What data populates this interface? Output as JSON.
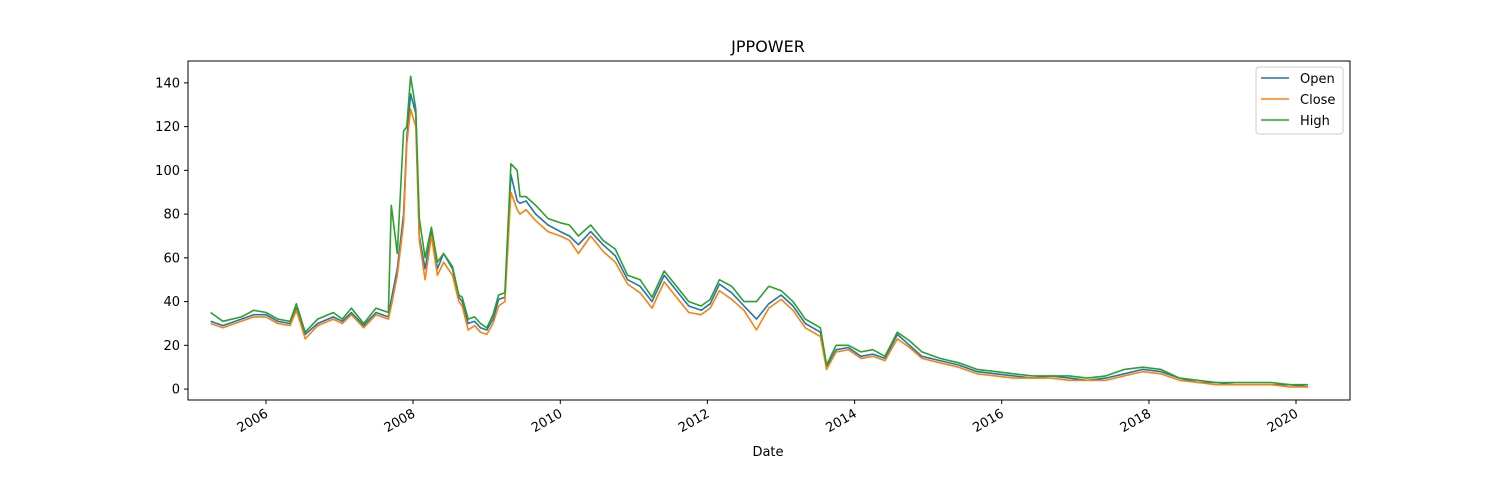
{
  "chart_data": {
    "type": "line",
    "title": "JPPOWER",
    "xlabel": "Date",
    "ylabel": "",
    "xlim": [
      "2004-12-10",
      "2020-09-25"
    ],
    "ylim": [
      -5,
      150
    ],
    "grid": false,
    "legend_position": "top-right",
    "x_ticks": [
      "2006",
      "2008",
      "2010",
      "2012",
      "2014",
      "2016",
      "2018",
      "2020"
    ],
    "y_ticks": [
      0,
      20,
      40,
      60,
      80,
      100,
      120,
      140
    ],
    "series": [
      {
        "name": "Open",
        "color": "#1f77b4",
        "x": [
          "2005-04-01",
          "2005-06-01",
          "2005-09-01",
          "2005-11-01",
          "2006-01-01",
          "2006-03-01",
          "2006-05-01",
          "2006-06-01",
          "2006-07-15",
          "2006-09-15",
          "2006-12-01",
          "2007-01-15",
          "2007-03-01",
          "2007-05-01",
          "2007-07-01",
          "2007-09-01",
          "2007-09-15",
          "2007-10-15",
          "2007-11-15",
          "2007-12-01",
          "2007-12-20",
          "2008-01-15",
          "2008-02-01",
          "2008-03-01",
          "2008-04-01",
          "2008-05-01",
          "2008-06-01",
          "2008-07-15",
          "2008-08-15",
          "2008-09-01",
          "2008-10-01",
          "2008-11-01",
          "2008-12-01",
          "2009-01-01",
          "2009-02-01",
          "2009-03-01",
          "2009-04-01",
          "2009-05-01",
          "2009-06-01",
          "2009-06-15",
          "2009-07-15",
          "2009-09-01",
          "2009-11-01",
          "2010-01-01",
          "2010-02-15",
          "2010-04-01",
          "2010-06-01",
          "2010-08-01",
          "2010-10-01",
          "2010-12-01",
          "2011-02-01",
          "2011-04-01",
          "2011-06-01",
          "2011-08-01",
          "2011-10-01",
          "2011-12-01",
          "2012-01-15",
          "2012-03-01",
          "2012-05-01",
          "2012-07-01",
          "2012-09-01",
          "2012-11-01",
          "2013-01-01",
          "2013-03-01",
          "2013-05-01",
          "2013-07-15",
          "2013-08-15",
          "2013-10-01",
          "2013-12-01",
          "2014-02-01",
          "2014-04-01",
          "2014-06-01",
          "2014-08-01",
          "2014-10-01",
          "2014-12-01",
          "2015-03-01",
          "2015-06-01",
          "2015-09-01",
          "2015-12-01",
          "2016-03-01",
          "2016-06-01",
          "2016-09-01",
          "2016-12-01",
          "2017-03-01",
          "2017-06-01",
          "2017-09-01",
          "2017-12-01",
          "2018-03-01",
          "2018-06-01",
          "2018-09-01",
          "2018-12-01",
          "2019-03-01",
          "2019-06-01",
          "2019-09-01",
          "2019-12-01",
          "2020-03-01"
        ],
        "y": [
          31,
          29,
          32,
          34,
          34,
          31,
          30,
          37,
          25,
          30,
          33,
          31,
          35,
          29,
          35,
          33,
          41,
          55,
          80,
          115,
          135,
          126,
          70,
          55,
          72,
          55,
          62,
          55,
          42,
          40,
          30,
          31,
          28,
          27,
          32,
          41,
          42,
          98,
          86,
          85,
          86,
          80,
          75,
          72,
          70,
          66,
          72,
          66,
          61,
          50,
          47,
          40,
          52,
          45,
          38,
          36,
          39,
          48,
          44,
          38,
          32,
          39,
          43,
          38,
          30,
          26,
          10,
          18,
          19,
          15,
          16,
          14,
          25,
          20,
          15,
          13,
          11,
          8,
          7,
          6,
          5,
          6,
          5,
          4,
          5,
          7,
          9,
          8,
          5,
          3,
          3,
          2,
          2,
          2,
          2,
          1
        ]
      },
      {
        "name": "Close",
        "color": "#ff7f0e",
        "x": [
          "2005-04-01",
          "2005-06-01",
          "2005-09-01",
          "2005-11-01",
          "2006-01-01",
          "2006-03-01",
          "2006-05-01",
          "2006-06-01",
          "2006-07-15",
          "2006-09-15",
          "2006-12-01",
          "2007-01-15",
          "2007-03-01",
          "2007-05-01",
          "2007-07-01",
          "2007-09-01",
          "2007-09-15",
          "2007-10-15",
          "2007-11-15",
          "2007-12-01",
          "2007-12-20",
          "2008-01-15",
          "2008-02-01",
          "2008-03-01",
          "2008-04-01",
          "2008-05-01",
          "2008-06-01",
          "2008-07-15",
          "2008-08-15",
          "2008-09-01",
          "2008-10-01",
          "2008-11-01",
          "2008-12-01",
          "2009-01-01",
          "2009-02-01",
          "2009-03-01",
          "2009-04-01",
          "2009-05-01",
          "2009-06-01",
          "2009-06-15",
          "2009-07-15",
          "2009-09-01",
          "2009-11-01",
          "2010-01-01",
          "2010-02-15",
          "2010-04-01",
          "2010-06-01",
          "2010-08-01",
          "2010-10-01",
          "2010-12-01",
          "2011-02-01",
          "2011-04-01",
          "2011-06-01",
          "2011-08-01",
          "2011-10-01",
          "2011-12-01",
          "2012-01-15",
          "2012-03-01",
          "2012-05-01",
          "2012-07-01",
          "2012-09-01",
          "2012-11-01",
          "2013-01-01",
          "2013-03-01",
          "2013-05-01",
          "2013-07-15",
          "2013-08-15",
          "2013-10-01",
          "2013-12-01",
          "2014-02-01",
          "2014-04-01",
          "2014-06-01",
          "2014-08-01",
          "2014-10-01",
          "2014-12-01",
          "2015-03-01",
          "2015-06-01",
          "2015-09-01",
          "2015-12-01",
          "2016-03-01",
          "2016-06-01",
          "2016-09-01",
          "2016-12-01",
          "2017-03-01",
          "2017-06-01",
          "2017-09-01",
          "2017-12-01",
          "2018-03-01",
          "2018-06-01",
          "2018-09-01",
          "2018-12-01",
          "2019-03-01",
          "2019-06-01",
          "2019-09-01",
          "2019-12-01",
          "2020-03-01"
        ],
        "y": [
          30,
          28,
          31,
          33,
          33,
          30,
          29,
          36,
          23,
          29,
          32,
          30,
          34,
          28,
          34,
          32,
          38,
          52,
          76,
          112,
          128,
          120,
          68,
          50,
          70,
          52,
          58,
          52,
          40,
          38,
          27,
          29,
          26,
          25,
          30,
          38,
          40,
          90,
          82,
          80,
          82,
          77,
          72,
          70,
          68,
          62,
          70,
          63,
          58,
          48,
          44,
          37,
          49,
          42,
          35,
          34,
          37,
          45,
          41,
          36,
          27,
          37,
          41,
          36,
          28,
          24,
          9,
          17,
          18,
          14,
          15,
          13,
          23,
          19,
          14,
          12,
          10,
          7,
          6,
          5,
          5,
          5,
          4,
          4,
          4,
          6,
          8,
          7,
          4,
          3,
          2,
          2,
          2,
          2,
          1,
          1
        ]
      },
      {
        "name": "High",
        "color": "#2ca02c",
        "x": [
          "2005-04-01",
          "2005-06-01",
          "2005-09-01",
          "2005-11-01",
          "2006-01-01",
          "2006-03-01",
          "2006-05-01",
          "2006-06-01",
          "2006-07-15",
          "2006-09-15",
          "2006-12-01",
          "2007-01-15",
          "2007-03-01",
          "2007-05-01",
          "2007-07-01",
          "2007-09-01",
          "2007-09-15",
          "2007-10-15",
          "2007-11-15",
          "2007-12-01",
          "2007-12-20",
          "2008-01-15",
          "2008-02-01",
          "2008-03-01",
          "2008-04-01",
          "2008-05-01",
          "2008-06-01",
          "2008-07-15",
          "2008-08-15",
          "2008-09-01",
          "2008-10-01",
          "2008-11-01",
          "2008-12-01",
          "2009-01-01",
          "2009-02-01",
          "2009-03-01",
          "2009-04-01",
          "2009-05-01",
          "2009-06-01",
          "2009-06-15",
          "2009-07-15",
          "2009-09-01",
          "2009-11-01",
          "2010-01-01",
          "2010-02-15",
          "2010-04-01",
          "2010-06-01",
          "2010-08-01",
          "2010-10-01",
          "2010-12-01",
          "2011-02-01",
          "2011-04-01",
          "2011-06-01",
          "2011-08-01",
          "2011-10-01",
          "2011-12-01",
          "2012-01-15",
          "2012-03-01",
          "2012-05-01",
          "2012-07-01",
          "2012-09-01",
          "2012-11-01",
          "2013-01-01",
          "2013-03-01",
          "2013-05-01",
          "2013-07-15",
          "2013-08-15",
          "2013-10-01",
          "2013-12-01",
          "2014-02-01",
          "2014-04-01",
          "2014-06-01",
          "2014-08-01",
          "2014-10-01",
          "2014-12-01",
          "2015-03-01",
          "2015-06-01",
          "2015-09-01",
          "2015-12-01",
          "2016-03-01",
          "2016-06-01",
          "2016-09-01",
          "2016-12-01",
          "2017-03-01",
          "2017-06-01",
          "2017-09-01",
          "2017-12-01",
          "2018-03-01",
          "2018-06-01",
          "2018-09-01",
          "2018-12-01",
          "2019-03-01",
          "2019-06-01",
          "2019-09-01",
          "2019-12-01",
          "2020-03-01"
        ],
        "y": [
          35,
          31,
          33,
          36,
          35,
          32,
          31,
          39,
          26,
          32,
          35,
          32,
          37,
          30,
          37,
          35,
          84,
          62,
          118,
          120,
          143,
          128,
          78,
          60,
          74,
          58,
          62,
          56,
          43,
          42,
          32,
          33,
          30,
          28,
          34,
          43,
          44,
          103,
          100,
          88,
          88,
          84,
          78,
          76,
          75,
          70,
          75,
          68,
          64,
          52,
          50,
          42,
          54,
          47,
          40,
          38,
          41,
          50,
          47,
          40,
          40,
          47,
          45,
          40,
          32,
          28,
          11,
          20,
          20,
          17,
          18,
          15,
          26,
          22,
          17,
          14,
          12,
          9,
          8,
          7,
          6,
          6,
          6,
          5,
          6,
          9,
          10,
          9,
          5,
          4,
          3,
          3,
          3,
          3,
          2,
          2
        ]
      }
    ]
  }
}
